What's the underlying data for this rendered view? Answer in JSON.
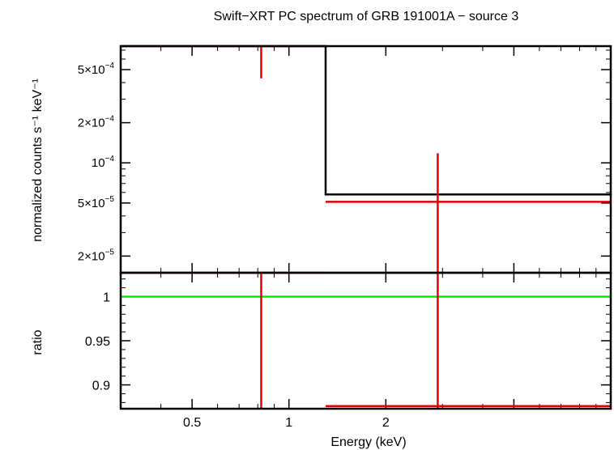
{
  "chart_data": [
    {
      "type": "line",
      "title": "Swift−XRT PC spectrum of GRB 191001A − source 3",
      "ylabel": "normalized counts s⁻¹ keV⁻¹",
      "xscale": "log",
      "yscale": "log",
      "xlim": [
        0.3,
        10
      ],
      "ylim": [
        1.5e-05,
        0.00075
      ],
      "yticks": [
        {
          "value": 0.0005,
          "mant": "5×10",
          "exp": "−4"
        },
        {
          "value": 0.0002,
          "mant": "2×10",
          "exp": "−4"
        },
        {
          "value": 0.0001,
          "mant": "10",
          "exp": "−4"
        },
        {
          "value": 5e-05,
          "mant": "5×10",
          "exp": "−5"
        },
        {
          "value": 2e-05,
          "mant": "2×10",
          "exp": "−5"
        }
      ],
      "series": [
        {
          "kind": "model",
          "color": "#000000",
          "steps": [
            {
              "x0": 0.3,
              "x1": 1.3,
              "y": 0.00075
            },
            {
              "x0": 1.3,
              "x1": 10,
              "y": 5.8e-05
            }
          ]
        },
        {
          "kind": "data",
          "color": "#e60000",
          "points": [
            {
              "x": 0.82,
              "xlo": 0.3,
              "xhi": 1.3,
              "y": 0.00075,
              "ylo": 0.00043,
              "yhi": 0.00075
            },
            {
              "x": 2.9,
              "xlo": 1.3,
              "xhi": 10,
              "y": 5.1e-05,
              "ylo": 1.5e-05,
              "yhi": 0.000118
            }
          ]
        }
      ]
    },
    {
      "type": "line",
      "xlabel": "Energy (keV)",
      "ylabel": "ratio",
      "xscale": "log",
      "xlim": [
        0.3,
        10
      ],
      "ylim": [
        0.873,
        1.027
      ],
      "xticks": [
        {
          "value": 0.5,
          "label": "0.5"
        },
        {
          "value": 1,
          "label": "1"
        },
        {
          "value": 2,
          "label": "2"
        }
      ],
      "yticks": [
        {
          "value": 1,
          "label": "1"
        },
        {
          "value": 0.95,
          "label": "0.95"
        },
        {
          "value": 0.9,
          "label": "0.9"
        }
      ],
      "reference_line": {
        "y": 1,
        "color": "#00ee00"
      },
      "series": [
        {
          "kind": "data",
          "color": "#e60000",
          "points": [
            {
              "x": 0.82,
              "xlo": 0.3,
              "xhi": 1.3,
              "y": 1.027,
              "ylo": 0.873,
              "yhi": 1.027
            },
            {
              "x": 2.9,
              "xlo": 1.3,
              "xhi": 10,
              "y": 0.876,
              "ylo": 0.873,
              "yhi": 1.027
            }
          ]
        }
      ]
    }
  ]
}
